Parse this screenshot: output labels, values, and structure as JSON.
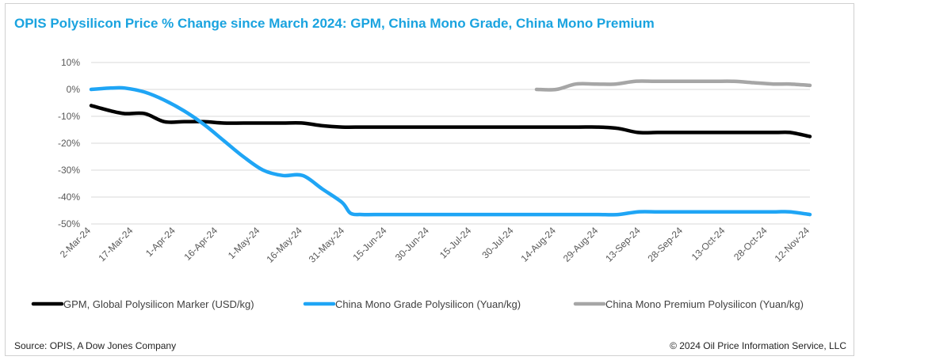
{
  "chart_data": {
    "type": "line",
    "title": "OPIS Polysilicon Price % Change since March 2024: GPM, China Mono Grade, China Mono Premium",
    "xlabel": "",
    "ylabel": "",
    "ylim": [
      -50,
      10
    ],
    "yticks": [
      10,
      0,
      -10,
      -20,
      -30,
      -40,
      -50
    ],
    "ytick_labels": [
      "10%",
      "0%",
      "-10%",
      "-20%",
      "-30%",
      "-40%",
      "-50%"
    ],
    "x_range": [
      "2024-03-02",
      "2024-11-12"
    ],
    "xticks": [
      "2-Mar-24",
      "17-Mar-24",
      "1-Apr-24",
      "16-Apr-24",
      "1-May-24",
      "16-May-24",
      "31-May-24",
      "15-Jun-24",
      "30-Jun-24",
      "15-Jul-24",
      "30-Jul-24",
      "14-Aug-24",
      "29-Aug-24",
      "13-Sep-24",
      "28-Sep-24",
      "13-Oct-24",
      "28-Oct-24",
      "12-Nov-24"
    ],
    "grid": true,
    "legend_position": "bottom",
    "series": [
      {
        "name": "GPM, Global Polysilicon Marker (USD/kg)",
        "color": "#000000",
        "points": [
          [
            "2024-03-02",
            -6
          ],
          [
            "2024-03-09",
            -8
          ],
          [
            "2024-03-14",
            -9
          ],
          [
            "2024-03-21",
            -9
          ],
          [
            "2024-03-28",
            -12
          ],
          [
            "2024-04-04",
            -12
          ],
          [
            "2024-04-11",
            -12
          ],
          [
            "2024-04-18",
            -12.5
          ],
          [
            "2024-04-25",
            -12.5
          ],
          [
            "2024-05-02",
            -12.5
          ],
          [
            "2024-05-09",
            -12.5
          ],
          [
            "2024-05-16",
            -12.5
          ],
          [
            "2024-05-23",
            -13.5
          ],
          [
            "2024-05-30",
            -14
          ],
          [
            "2024-06-06",
            -14
          ],
          [
            "2024-06-13",
            -14
          ],
          [
            "2024-06-20",
            -14
          ],
          [
            "2024-06-27",
            -14
          ],
          [
            "2024-07-04",
            -14
          ],
          [
            "2024-07-11",
            -14
          ],
          [
            "2024-07-18",
            -14
          ],
          [
            "2024-07-25",
            -14
          ],
          [
            "2024-08-01",
            -14
          ],
          [
            "2024-08-08",
            -14
          ],
          [
            "2024-08-15",
            -14
          ],
          [
            "2024-08-22",
            -14
          ],
          [
            "2024-08-29",
            -14
          ],
          [
            "2024-09-05",
            -14.5
          ],
          [
            "2024-09-12",
            -16
          ],
          [
            "2024-09-19",
            -16
          ],
          [
            "2024-09-26",
            -16
          ],
          [
            "2024-10-03",
            -16
          ],
          [
            "2024-10-10",
            -16
          ],
          [
            "2024-10-17",
            -16
          ],
          [
            "2024-10-24",
            -16
          ],
          [
            "2024-10-31",
            -16
          ],
          [
            "2024-11-05",
            -16
          ],
          [
            "2024-11-12",
            -17.5
          ]
        ]
      },
      {
        "name": "China Mono Grade Polysilicon (Yuan/kg)",
        "color": "#1fa5f5",
        "points": [
          [
            "2024-03-02",
            0
          ],
          [
            "2024-03-09",
            0.5
          ],
          [
            "2024-03-14",
            0.5
          ],
          [
            "2024-03-21",
            -1
          ],
          [
            "2024-03-28",
            -4
          ],
          [
            "2024-04-04",
            -8
          ],
          [
            "2024-04-11",
            -13
          ],
          [
            "2024-04-18",
            -19
          ],
          [
            "2024-04-25",
            -25
          ],
          [
            "2024-05-02",
            -30
          ],
          [
            "2024-05-09",
            -32
          ],
          [
            "2024-05-16",
            -32
          ],
          [
            "2024-05-23",
            -37
          ],
          [
            "2024-05-30",
            -42
          ],
          [
            "2024-06-02",
            -46
          ],
          [
            "2024-06-06",
            -46.5
          ],
          [
            "2024-06-13",
            -46.5
          ],
          [
            "2024-06-20",
            -46.5
          ],
          [
            "2024-06-27",
            -46.5
          ],
          [
            "2024-07-04",
            -46.5
          ],
          [
            "2024-07-11",
            -46.5
          ],
          [
            "2024-07-18",
            -46.5
          ],
          [
            "2024-07-25",
            -46.5
          ],
          [
            "2024-08-01",
            -46.5
          ],
          [
            "2024-08-08",
            -46.5
          ],
          [
            "2024-08-15",
            -46.5
          ],
          [
            "2024-08-22",
            -46.5
          ],
          [
            "2024-08-29",
            -46.5
          ],
          [
            "2024-09-05",
            -46.5
          ],
          [
            "2024-09-12",
            -45.5
          ],
          [
            "2024-09-19",
            -45.5
          ],
          [
            "2024-09-26",
            -45.5
          ],
          [
            "2024-10-03",
            -45.5
          ],
          [
            "2024-10-10",
            -45.5
          ],
          [
            "2024-10-17",
            -45.5
          ],
          [
            "2024-10-24",
            -45.5
          ],
          [
            "2024-10-31",
            -45.5
          ],
          [
            "2024-11-05",
            -45.5
          ],
          [
            "2024-11-12",
            -46.5
          ]
        ]
      },
      {
        "name": "China Mono Premium Polysilicon (Yuan/kg)",
        "color": "#a6a6a6",
        "points": [
          [
            "2024-08-07",
            0
          ],
          [
            "2024-08-14",
            0
          ],
          [
            "2024-08-21",
            2
          ],
          [
            "2024-08-28",
            2
          ],
          [
            "2024-09-04",
            2
          ],
          [
            "2024-09-11",
            3
          ],
          [
            "2024-09-18",
            3
          ],
          [
            "2024-09-25",
            3
          ],
          [
            "2024-10-02",
            3
          ],
          [
            "2024-10-09",
            3
          ],
          [
            "2024-10-16",
            3
          ],
          [
            "2024-10-23",
            2.5
          ],
          [
            "2024-10-30",
            2
          ],
          [
            "2024-11-05",
            2
          ],
          [
            "2024-11-12",
            1.5
          ]
        ]
      }
    ]
  },
  "footer": {
    "source": "Source: OPIS, A Dow Jones Company",
    "copyright": "© 2024 Oil Price Information Service, LLC"
  }
}
